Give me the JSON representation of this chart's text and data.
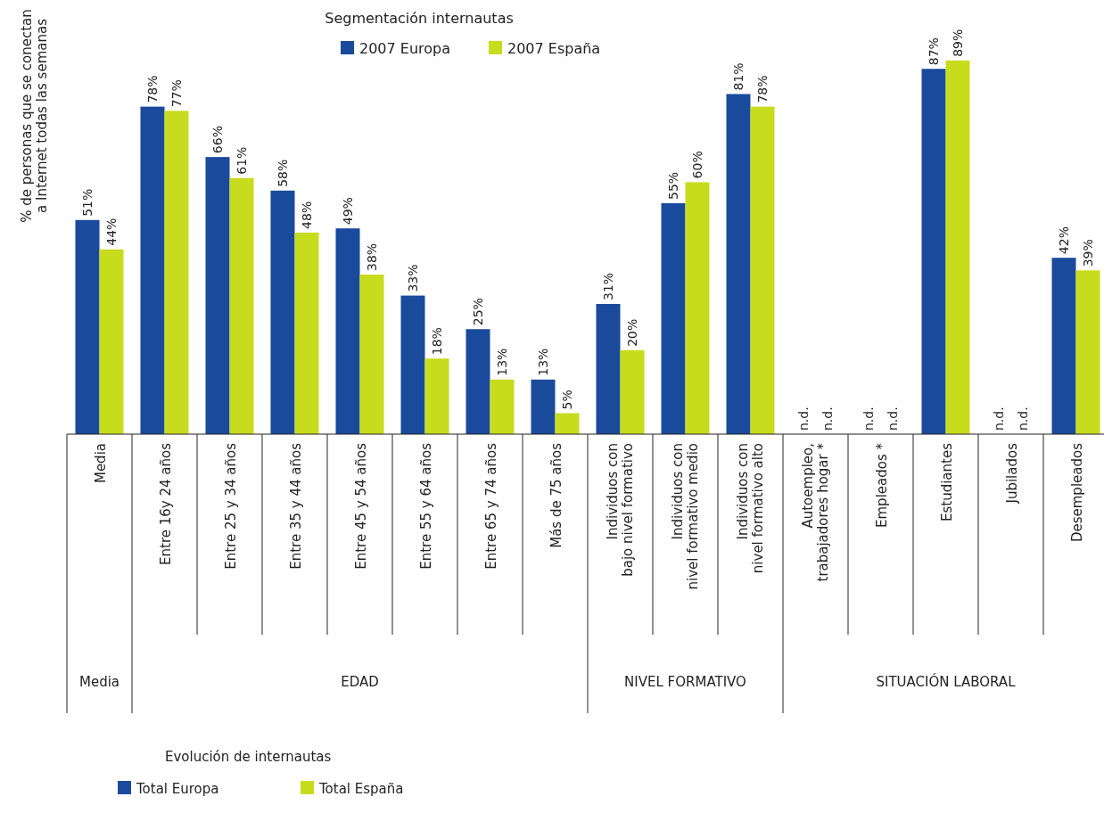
{
  "chart_data": {
    "type": "bar",
    "title": "Segmentación internautas",
    "ylabel": "% de personas que se conectan\na Internet todas las semanas",
    "categories": [
      "Media",
      "Entre 16y 24 años",
      "Entre 25 y 34 años",
      "Entre 35 y 44 años",
      "Entre 45 y 54 años",
      "Entre 55 y 64 años",
      "Entre 65 y 74 años",
      "Más de 75 años",
      "Individuos con\nbajo nivel formativo",
      "Individuos con\nnivel formativo medio",
      "Individuos con\nnivel formativo alto",
      "Autoempleo,\ntrabajadores hogar *",
      "Empleados *",
      "Estudiantes",
      "Jubilados",
      "Desempleados"
    ],
    "series": [
      {
        "name": "2007 Europa",
        "color": "#1a4a9c",
        "values": [
          51,
          78,
          66,
          58,
          49,
          33,
          25,
          13,
          31,
          55,
          81,
          null,
          null,
          87,
          null,
          42
        ],
        "value_labels": [
          "51%",
          "78%",
          "66%",
          "58%",
          "49%",
          "33%",
          "25%",
          "13%",
          "31%",
          "55%",
          "81%",
          "n.d.",
          "n.d.",
          "87%",
          "n.d.",
          "42%"
        ]
      },
      {
        "name": "2007 España",
        "color": "#c8dc1e",
        "values": [
          44,
          77,
          61,
          48,
          38,
          18,
          13,
          5,
          20,
          60,
          78,
          null,
          null,
          89,
          null,
          39
        ],
        "value_labels": [
          "44%",
          "77%",
          "61%",
          "48%",
          "38%",
          "18%",
          "13%",
          "5%",
          "20%",
          "60%",
          "78%",
          "n.d.",
          "n.d.",
          "89%",
          "n.d.",
          "39%"
        ]
      }
    ],
    "tick_labels": "x",
    "legend": "top",
    "grid": false,
    "annotations": [
      "Media",
      "EDAD",
      "NIVEL FORMATIVO",
      "SITUACIÓN LABORAL",
      "Evolución de internautas",
      "Total Europa",
      "Total España"
    ]
  }
}
